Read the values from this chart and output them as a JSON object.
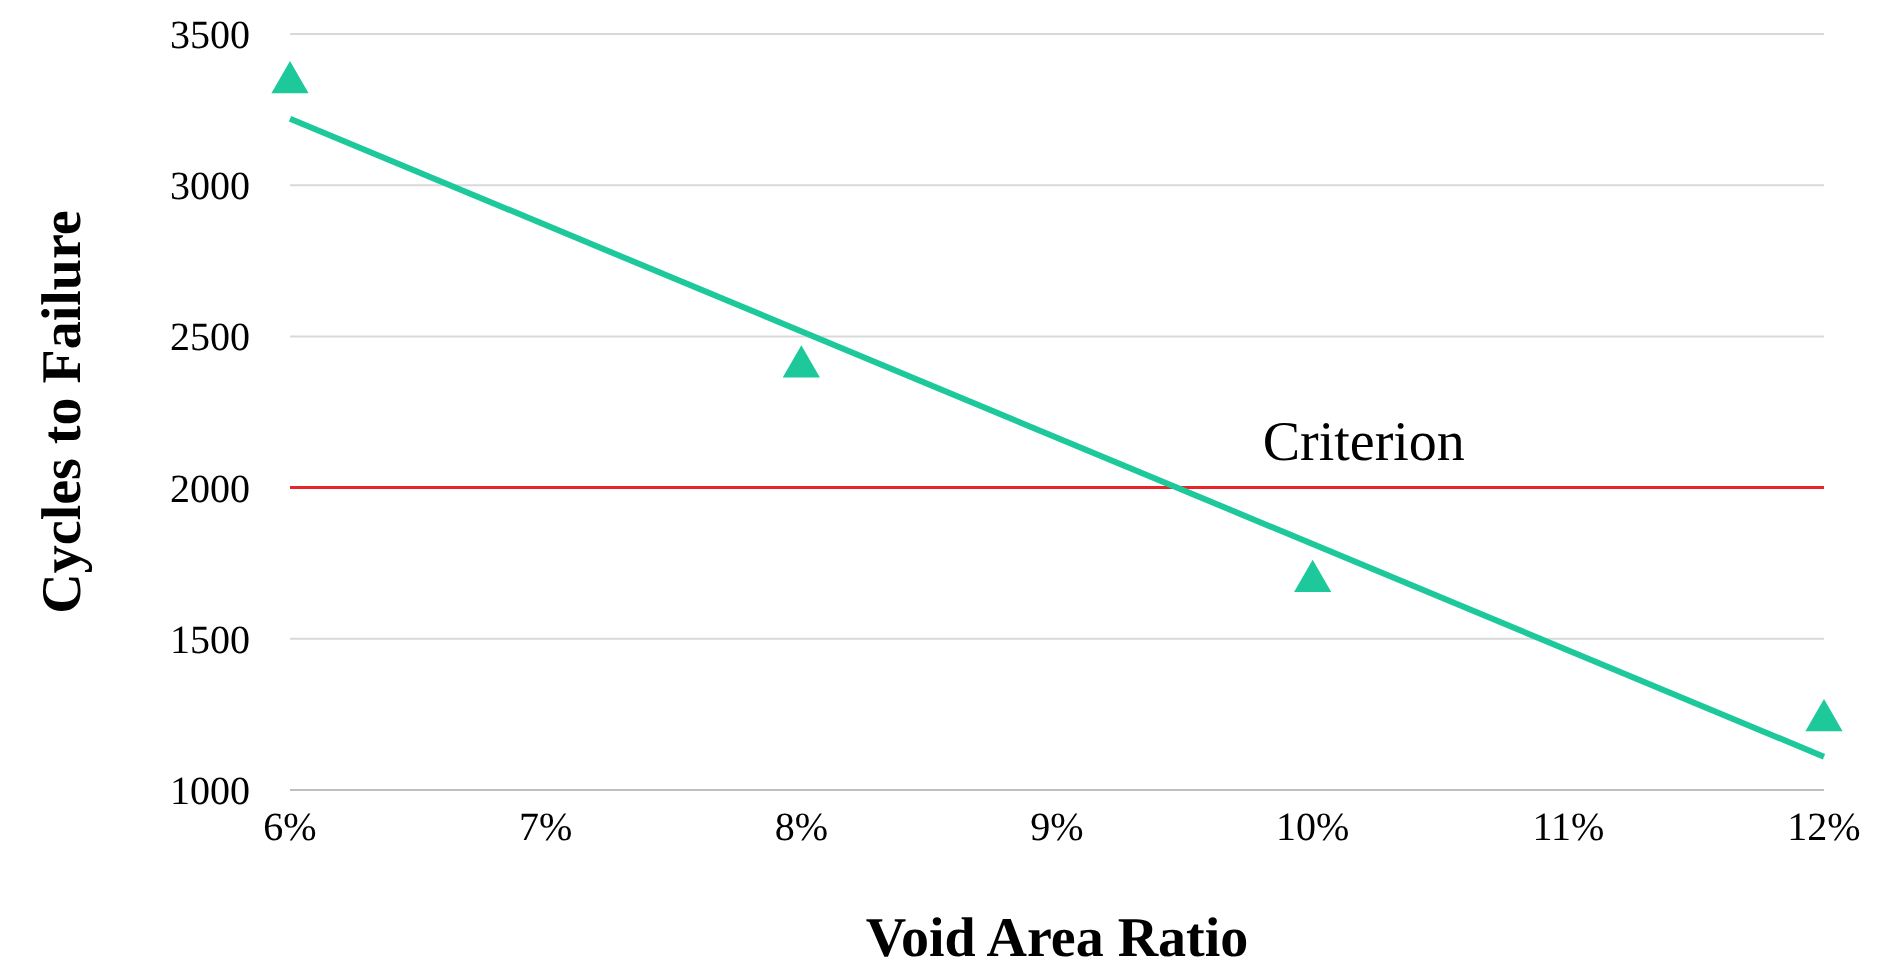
{
  "chart_data": {
    "type": "scatter",
    "xlabel": "Void Area Ratio",
    "ylabel": "Cycles to Failure",
    "xlim": [
      6,
      12
    ],
    "xticks": [
      {
        "value": 6,
        "label": "6%"
      },
      {
        "value": 7,
        "label": "7%"
      },
      {
        "value": 8,
        "label": "8%"
      },
      {
        "value": 9,
        "label": "9%"
      },
      {
        "value": 10,
        "label": "10%"
      },
      {
        "value": 11,
        "label": "11%"
      },
      {
        "value": 12,
        "label": "12%"
      }
    ],
    "ylim": [
      1000,
      3500
    ],
    "yticks": [
      1000,
      1500,
      2000,
      2500,
      3000,
      3500
    ],
    "grid": "y",
    "series": [
      {
        "color": "#1dc99a",
        "x": [
          6,
          8,
          10,
          12
        ],
        "values": [
          3340,
          2400,
          1690,
          1230
        ],
        "marker": "triangle"
      },
      {
        "type": "line",
        "color": "#1dc99a",
        "x": [
          6,
          12
        ],
        "values": [
          3220,
          1110
        ],
        "marker": "none",
        "line_style": "solid"
      }
    ],
    "ref_lines": [
      {
        "axis": "y",
        "value": 2000,
        "label": "Criterion",
        "color": "#e8262a"
      }
    ]
  }
}
